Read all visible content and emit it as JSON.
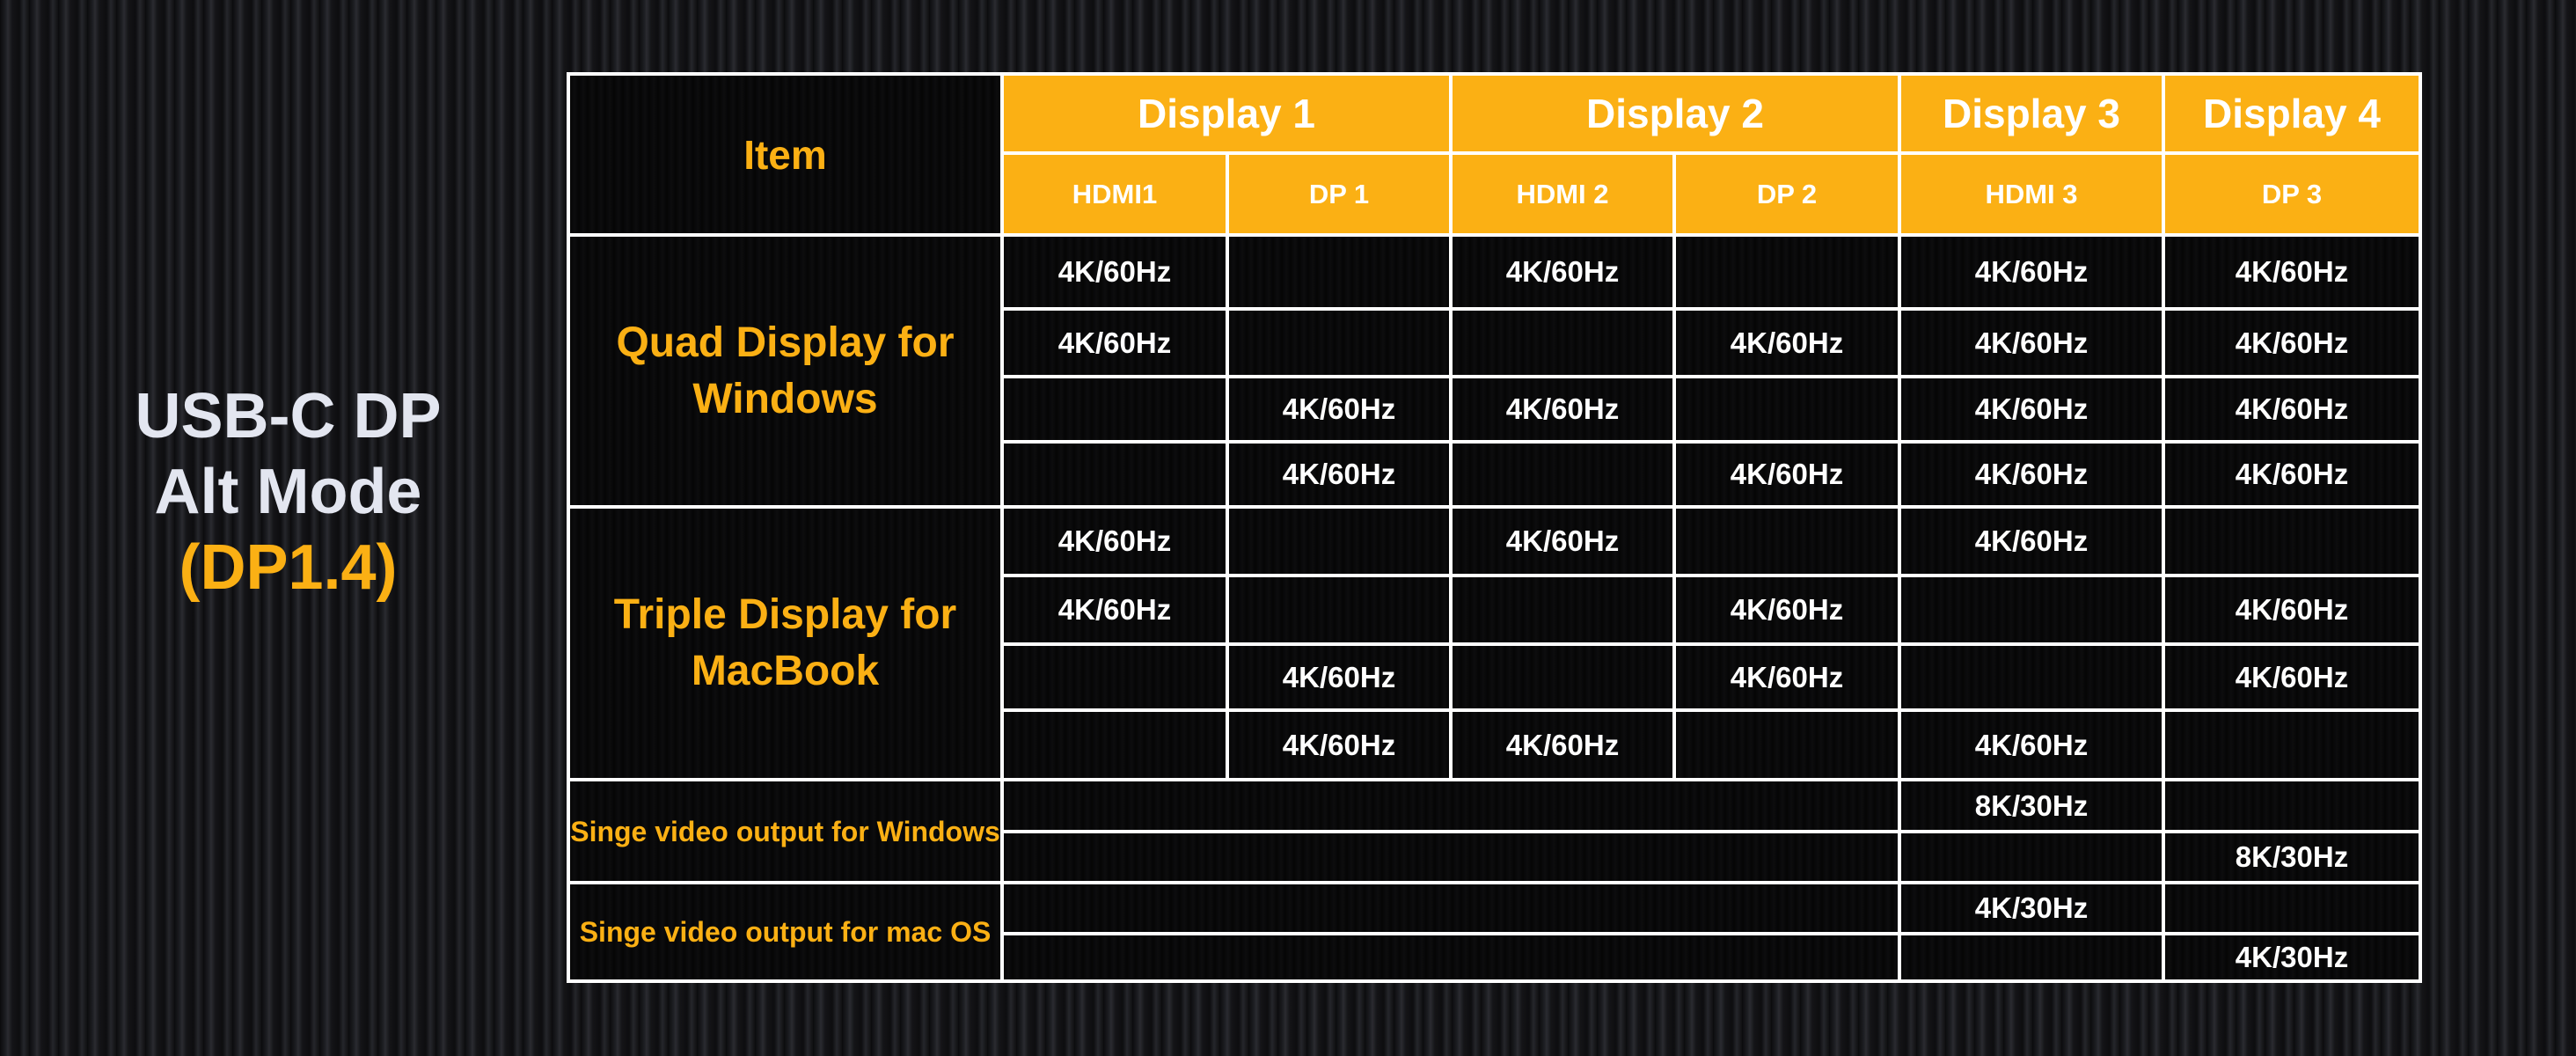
{
  "title": {
    "line1": "USB-C DP",
    "line2": "Alt Mode",
    "line3": "(DP1.4)"
  },
  "colors": {
    "accent": "#fbb014",
    "text": "#ffffff",
    "background": "#121214"
  },
  "header": {
    "item": "Item",
    "displays": [
      "Display 1",
      "Display 2",
      "Display 3",
      "Display 4"
    ],
    "ports": [
      "HDMI1",
      "DP 1",
      "HDMI 2",
      "DP 2",
      "HDMI 3",
      "DP 3"
    ]
  },
  "groups": [
    {
      "label": "Quad Display for Windows",
      "rows": [
        [
          "4K/60Hz",
          "",
          "4K/60Hz",
          "",
          "4K/60Hz",
          "4K/60Hz"
        ],
        [
          "4K/60Hz",
          "",
          "",
          "4K/60Hz",
          "4K/60Hz",
          "4K/60Hz"
        ],
        [
          "",
          "4K/60Hz",
          "4K/60Hz",
          "",
          "4K/60Hz",
          "4K/60Hz"
        ],
        [
          "",
          "4K/60Hz",
          "",
          "4K/60Hz",
          "4K/60Hz",
          "4K/60Hz"
        ]
      ]
    },
    {
      "label": "Triple Display for MacBook",
      "rows": [
        [
          "4K/60Hz",
          "",
          "4K/60Hz",
          "",
          "4K/60Hz",
          ""
        ],
        [
          "4K/60Hz",
          "",
          "",
          "4K/60Hz",
          "",
          "4K/60Hz"
        ],
        [
          "",
          "4K/60Hz",
          "",
          "4K/60Hz",
          "",
          "4K/60Hz"
        ],
        [
          "",
          "4K/60Hz",
          "4K/60Hz",
          "",
          "4K/60Hz",
          ""
        ]
      ]
    }
  ],
  "single_groups": [
    {
      "label": "Singe video output for Windows",
      "rows": [
        [
          "8K/30Hz",
          ""
        ],
        [
          "",
          "8K/30Hz"
        ]
      ]
    },
    {
      "label": "Singe video output for mac OS",
      "rows": [
        [
          "4K/30Hz",
          ""
        ],
        [
          "",
          "4K/30Hz"
        ]
      ]
    }
  ]
}
